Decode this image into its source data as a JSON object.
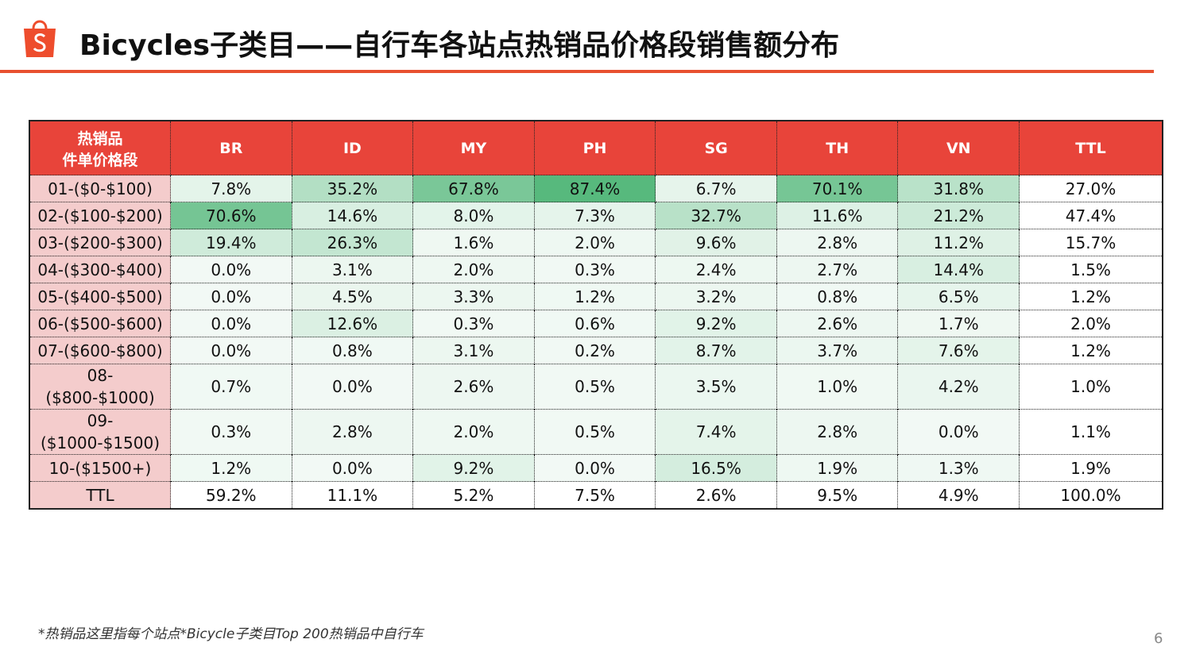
{
  "header": {
    "title": "Bicycles子类目——自行车各站点热销品价格段销售额分布"
  },
  "table": {
    "corner": [
      "热销品",
      "件单价格段"
    ],
    "columns": [
      "BR",
      "ID",
      "MY",
      "PH",
      "SG",
      "TH",
      "VN",
      "TTL"
    ],
    "rows": [
      [
        "01-($0-$100)",
        "7.8%",
        "35.2%",
        "67.8%",
        "87.4%",
        "6.7%",
        "70.1%",
        "31.8%",
        "27.0%"
      ],
      [
        "02-($100-$200)",
        "70.6%",
        "14.6%",
        "8.0%",
        "7.3%",
        "32.7%",
        "11.6%",
        "21.2%",
        "47.4%"
      ],
      [
        "03-($200-$300)",
        "19.4%",
        "26.3%",
        "1.6%",
        "2.0%",
        "9.6%",
        "2.8%",
        "11.2%",
        "15.7%"
      ],
      [
        "04-($300-$400)",
        "0.0%",
        "3.1%",
        "2.0%",
        "0.3%",
        "2.4%",
        "2.7%",
        "14.4%",
        "1.5%"
      ],
      [
        "05-($400-$500)",
        "0.0%",
        "4.5%",
        "3.3%",
        "1.2%",
        "3.2%",
        "0.8%",
        "6.5%",
        "1.2%"
      ],
      [
        "06-($500-$600)",
        "0.0%",
        "12.6%",
        "0.3%",
        "0.6%",
        "9.2%",
        "2.6%",
        "1.7%",
        "2.0%"
      ],
      [
        "07-($600-$800)",
        "0.0%",
        "0.8%",
        "3.1%",
        "0.2%",
        "8.7%",
        "3.7%",
        "7.6%",
        "1.2%"
      ],
      [
        "08-($800-$1000)",
        "0.7%",
        "0.0%",
        "2.6%",
        "0.5%",
        "3.5%",
        "1.0%",
        "4.2%",
        "1.0%"
      ],
      [
        "09-($1000-$1500)",
        "0.3%",
        "2.8%",
        "2.0%",
        "0.5%",
        "7.4%",
        "2.8%",
        "0.0%",
        "1.1%"
      ],
      [
        "10-($1500+)",
        "1.2%",
        "0.0%",
        "9.2%",
        "0.0%",
        "16.5%",
        "1.9%",
        "1.3%",
        "1.9%"
      ],
      [
        "TTL",
        "59.2%",
        "11.1%",
        "5.2%",
        "7.5%",
        "2.6%",
        "9.5%",
        "4.9%",
        "100.0%"
      ]
    ]
  },
  "footnote": "*热销品这里指每个站点*Bicycle子类目Top 200热销品中自行车",
  "page_number": "6"
}
